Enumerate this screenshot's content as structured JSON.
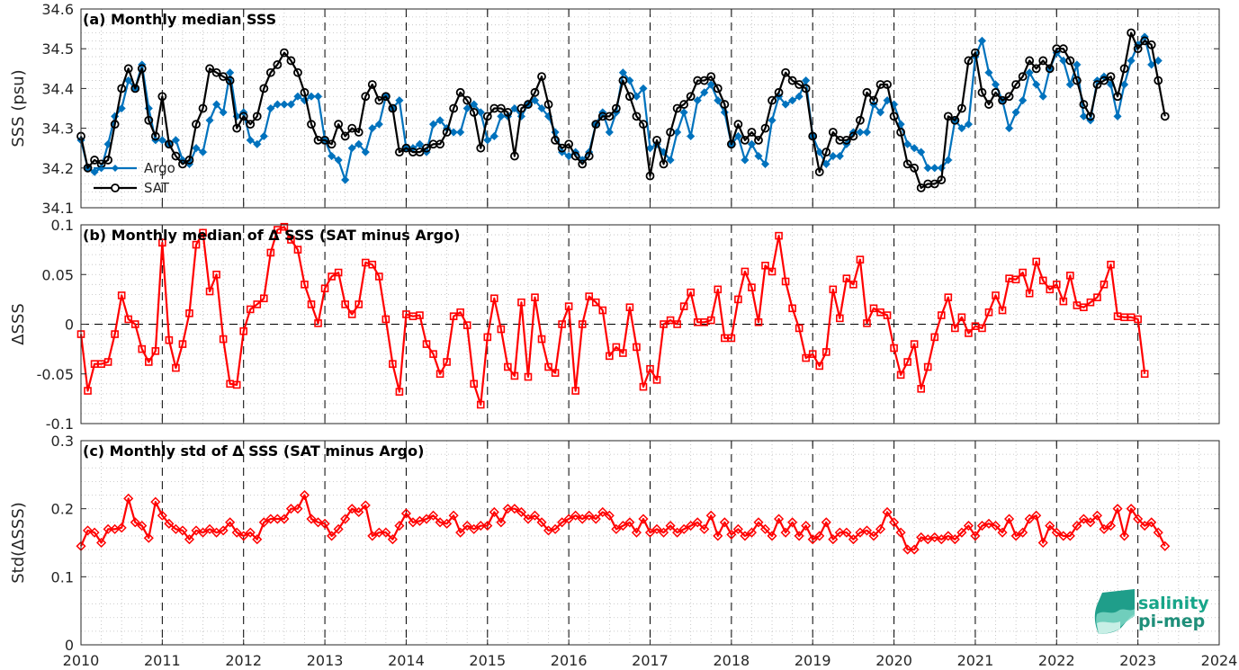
{
  "colors": {
    "argo": "#0072BD",
    "sat": "#000000",
    "delta": "#ff0000",
    "grid": "#bdbdbd",
    "axis": "#262626"
  },
  "logo": {
    "line1": "salinity",
    "line2": "pi-mep"
  },
  "x_ticks": [
    "2010",
    "2011",
    "2012",
    "2013",
    "2014",
    "2015",
    "2016",
    "2017",
    "2018",
    "2019",
    "2020",
    "2021",
    "2022",
    "2023",
    "2024"
  ],
  "chart_data": [
    {
      "type": "line",
      "title": "(a) Monthly median SSS",
      "ylabel": "SSS (psu)",
      "xlim": [
        2010,
        2024
      ],
      "ylim": [
        34.1,
        34.6
      ],
      "yticks": [
        "34.1",
        "34.2",
        "34.3",
        "34.4",
        "34.5",
        "34.6"
      ],
      "ytick_values": [
        34.1,
        34.2,
        34.3,
        34.4,
        34.5,
        34.6
      ],
      "grid": true,
      "legend": "lower-left",
      "x_start": 2010.0,
      "x_step_months": 1,
      "series": [
        {
          "name": "Argo",
          "color": "#0072BD",
          "marker": "diamond",
          "values": [
            34.27,
            34.2,
            34.19,
            34.2,
            34.26,
            34.33,
            34.35,
            34.42,
            34.4,
            34.46,
            34.35,
            34.27,
            34.27,
            34.26,
            34.27,
            34.22,
            34.21,
            34.25,
            34.24,
            34.32,
            34.36,
            34.34,
            34.44,
            34.33,
            34.34,
            34.27,
            34.26,
            34.28,
            34.35,
            34.36,
            34.36,
            34.36,
            34.38,
            34.37,
            34.38,
            34.38,
            34.27,
            34.23,
            34.22,
            34.17,
            34.25,
            34.26,
            34.24,
            34.3,
            34.31,
            34.38,
            34.35,
            34.37,
            34.25,
            34.25,
            34.26,
            34.24,
            34.31,
            34.32,
            34.3,
            34.29,
            34.29,
            34.35,
            34.36,
            34.34,
            34.27,
            34.28,
            34.33,
            34.33,
            34.35,
            34.33,
            34.36,
            34.37,
            34.35,
            34.33,
            34.29,
            34.24,
            34.23,
            34.24,
            34.22,
            34.24,
            34.31,
            34.34,
            34.29,
            34.34,
            34.44,
            34.42,
            34.38,
            34.4,
            34.25,
            34.26,
            34.24,
            34.22,
            34.29,
            34.34,
            34.28,
            34.37,
            34.39,
            34.41,
            34.37,
            34.34,
            34.26,
            34.28,
            34.22,
            34.26,
            34.23,
            34.21,
            34.32,
            34.38,
            34.36,
            34.37,
            34.38,
            34.42,
            34.28,
            34.24,
            34.21,
            34.23,
            34.23,
            34.26,
            34.29,
            34.29,
            34.29,
            34.36,
            34.34,
            34.37,
            34.36,
            34.31,
            34.26,
            34.25,
            34.24,
            34.2,
            34.2,
            34.2,
            34.22,
            34.32,
            34.3,
            34.31,
            34.48,
            34.52,
            34.44,
            34.41,
            34.37,
            34.3,
            34.34,
            34.37,
            34.44,
            34.41,
            34.38,
            34.45,
            34.49,
            34.47,
            34.41,
            34.46,
            34.33,
            34.32,
            34.42,
            34.43,
            34.41,
            34.33,
            34.41,
            34.47,
            34.51,
            34.53,
            34.46,
            34.47
          ]
        },
        {
          "name": "SAT",
          "color": "#000000",
          "marker": "circle",
          "values": [
            34.28,
            34.2,
            34.22,
            34.21,
            34.22,
            34.31,
            34.4,
            34.45,
            34.4,
            34.45,
            34.32,
            34.28,
            34.38,
            34.26,
            34.23,
            34.21,
            34.22,
            34.31,
            34.35,
            34.45,
            34.44,
            34.43,
            34.42,
            34.3,
            34.33,
            34.31,
            34.33,
            34.4,
            34.44,
            34.46,
            34.49,
            34.47,
            34.44,
            34.39,
            34.31,
            34.27,
            34.27,
            34.26,
            34.31,
            34.28,
            34.3,
            34.29,
            34.38,
            34.41,
            34.37,
            34.38,
            34.35,
            34.24,
            34.25,
            34.24,
            34.24,
            34.25,
            34.26,
            34.26,
            34.29,
            34.35,
            34.39,
            34.37,
            34.34,
            34.25,
            34.33,
            34.35,
            34.35,
            34.34,
            34.23,
            34.35,
            34.36,
            34.39,
            34.43,
            34.36,
            34.27,
            34.25,
            34.26,
            34.23,
            34.21,
            34.23,
            34.31,
            34.33,
            34.33,
            34.35,
            34.42,
            34.38,
            34.33,
            34.31,
            34.18,
            34.27,
            34.21,
            34.29,
            34.35,
            34.36,
            34.38,
            34.42,
            34.42,
            34.43,
            34.4,
            34.36,
            34.26,
            34.31,
            34.27,
            34.29,
            34.27,
            34.3,
            34.37,
            34.39,
            34.44,
            34.42,
            34.41,
            34.4,
            34.28,
            34.19,
            34.24,
            34.29,
            34.27,
            34.27,
            34.28,
            34.32,
            34.39,
            34.37,
            34.41,
            34.41,
            34.33,
            34.29,
            34.21,
            34.2,
            34.15,
            34.16,
            34.16,
            34.17,
            34.33,
            34.32,
            34.35,
            34.47,
            34.49,
            34.39,
            34.36,
            34.39,
            34.37,
            34.38,
            34.41,
            34.43,
            34.47,
            34.45,
            34.47,
            34.45,
            34.5,
            34.5,
            34.47,
            34.42,
            34.36,
            34.33,
            34.41,
            34.42,
            34.43,
            34.38,
            34.45,
            34.54,
            34.5,
            34.52,
            34.51,
            34.42,
            34.33
          ]
        }
      ]
    },
    {
      "type": "line",
      "title": "(b) Monthly median of Δ SSS (SAT minus Argo)",
      "ylabel": "ΔSSS",
      "xlim": [
        2010,
        2024
      ],
      "ylim": [
        -0.1,
        0.1
      ],
      "yticks": [
        "-0.1",
        "-0.05",
        "0",
        "0.05",
        "0.1"
      ],
      "ytick_values": [
        -0.1,
        -0.05,
        0,
        0.05,
        0.1
      ],
      "grid": true,
      "zero_line": true,
      "x_start": 2010.0,
      "x_step_months": 1,
      "series": [
        {
          "name": "",
          "color": "#ff0000",
          "marker": "square",
          "values": [
            -0.01,
            -0.067,
            -0.04,
            -0.04,
            -0.038,
            -0.01,
            0.029,
            0.005,
            0.0,
            -0.025,
            -0.038,
            -0.027,
            0.082,
            -0.016,
            -0.044,
            -0.02,
            0.011,
            0.08,
            0.092,
            0.033,
            0.05,
            -0.015,
            -0.06,
            -0.061,
            -0.007,
            0.015,
            0.02,
            0.026,
            0.072,
            0.095,
            0.098,
            0.085,
            0.075,
            0.04,
            0.02,
            0.001,
            0.036,
            0.048,
            0.052,
            0.02,
            0.01,
            0.02,
            0.062,
            0.06,
            0.048,
            0.005,
            -0.04,
            -0.068,
            0.01,
            0.008,
            0.009,
            -0.02,
            -0.03,
            -0.05,
            -0.038,
            0.008,
            0.012,
            -0.001,
            -0.06,
            -0.081,
            -0.013,
            0.026,
            -0.005,
            -0.043,
            -0.052,
            0.022,
            -0.053,
            0.027,
            -0.015,
            -0.043,
            -0.049,
            0.0,
            0.018,
            -0.067,
            0.0,
            0.028,
            0.022,
            0.014,
            -0.032,
            -0.023,
            -0.029,
            0.017,
            -0.023,
            -0.063,
            -0.045,
            -0.056,
            0.0,
            0.004,
            0.0,
            0.018,
            0.032,
            0.002,
            0.002,
            0.004,
            0.035,
            -0.014,
            -0.014,
            0.025,
            0.053,
            0.037,
            0.002,
            0.059,
            0.053,
            0.089,
            0.043,
            0.016,
            -0.004,
            -0.034,
            -0.03,
            -0.042,
            -0.028,
            0.035,
            0.006,
            0.046,
            0.04,
            0.065,
            0.001,
            0.016,
            0.012,
            0.009,
            -0.024,
            -0.051,
            -0.038,
            -0.02,
            -0.065,
            -0.043,
            -0.013,
            0.009,
            0.027,
            -0.004,
            0.007,
            -0.009,
            -0.002,
            -0.004,
            0.012,
            0.029,
            0.014,
            0.046,
            0.045,
            0.052,
            0.031,
            0.063,
            0.044,
            0.035,
            0.04,
            0.023,
            0.049,
            0.019,
            0.017,
            0.022,
            0.027,
            0.04,
            0.06,
            0.008,
            0.007,
            0.007,
            0.005,
            -0.05
          ]
        }
      ]
    },
    {
      "type": "line",
      "title": "(c) Monthly std of Δ SSS (SAT minus Argo)",
      "ylabel": "Std(ΔSSS)",
      "xlim": [
        2010,
        2024
      ],
      "ylim": [
        0,
        0.3
      ],
      "yticks": [
        "0",
        "0.1",
        "0.2",
        "0.3"
      ],
      "ytick_values": [
        0,
        0.1,
        0.2,
        0.3
      ],
      "grid": true,
      "x_start": 2010.0,
      "x_step_months": 1,
      "series": [
        {
          "name": "",
          "color": "#ff0000",
          "marker": "diamond",
          "values": [
            0.145,
            0.168,
            0.165,
            0.15,
            0.17,
            0.17,
            0.172,
            0.215,
            0.18,
            0.175,
            0.157,
            0.21,
            0.19,
            0.178,
            0.17,
            0.168,
            0.155,
            0.168,
            0.165,
            0.17,
            0.165,
            0.168,
            0.18,
            0.165,
            0.16,
            0.165,
            0.155,
            0.18,
            0.185,
            0.185,
            0.185,
            0.2,
            0.2,
            0.22,
            0.185,
            0.18,
            0.178,
            0.16,
            0.17,
            0.185,
            0.2,
            0.195,
            0.205,
            0.16,
            0.165,
            0.165,
            0.155,
            0.175,
            0.193,
            0.18,
            0.182,
            0.185,
            0.19,
            0.18,
            0.178,
            0.19,
            0.165,
            0.175,
            0.17,
            0.175,
            0.175,
            0.195,
            0.18,
            0.2,
            0.2,
            0.195,
            0.185,
            0.19,
            0.18,
            0.168,
            0.17,
            0.18,
            0.185,
            0.19,
            0.185,
            0.19,
            0.185,
            0.195,
            0.19,
            0.17,
            0.175,
            0.18,
            0.165,
            0.185,
            0.165,
            0.17,
            0.165,
            0.175,
            0.165,
            0.17,
            0.175,
            0.18,
            0.17,
            0.19,
            0.16,
            0.18,
            0.162,
            0.17,
            0.16,
            0.165,
            0.18,
            0.17,
            0.16,
            0.185,
            0.165,
            0.18,
            0.16,
            0.175,
            0.155,
            0.16,
            0.18,
            0.155,
            0.165,
            0.165,
            0.155,
            0.165,
            0.168,
            0.16,
            0.17,
            0.195,
            0.18,
            0.165,
            0.14,
            0.14,
            0.158,
            0.155,
            0.158,
            0.155,
            0.16,
            0.155,
            0.165,
            0.175,
            0.16,
            0.175,
            0.178,
            0.175,
            0.165,
            0.185,
            0.16,
            0.165,
            0.185,
            0.19,
            0.15,
            0.175,
            0.165,
            0.16,
            0.16,
            0.175,
            0.185,
            0.18,
            0.19,
            0.17,
            0.175,
            0.2,
            0.16,
            0.2,
            0.185,
            0.175,
            0.18,
            0.165,
            0.145
          ]
        }
      ]
    }
  ]
}
